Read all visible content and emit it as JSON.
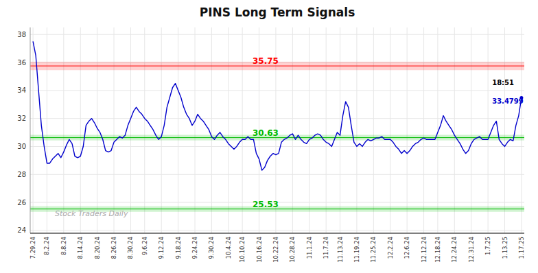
{
  "chart_data": {
    "type": "line",
    "title": "PINS Long Term Signals",
    "color": "#0000cc",
    "marker": "last",
    "grid": true,
    "ylim": [
      23.8,
      38.5
    ],
    "yticks": [
      24,
      26,
      28,
      30,
      32,
      34,
      36,
      38
    ],
    "categories": [
      "7.29.24",
      null,
      null,
      null,
      null,
      "8.2.24",
      null,
      null,
      null,
      null,
      null,
      "8.8.24",
      null,
      null,
      null,
      null,
      null,
      "8.14.24",
      null,
      null,
      null,
      null,
      null,
      "8.20.24",
      null,
      null,
      null,
      null,
      null,
      "8.26.24",
      null,
      null,
      null,
      null,
      null,
      "8.30.24",
      null,
      null,
      null,
      null,
      "9.6.24",
      null,
      null,
      null,
      null,
      null,
      "9.12.24",
      null,
      null,
      null,
      null,
      null,
      "9.18.24",
      null,
      null,
      null,
      null,
      null,
      "9.24.24",
      null,
      null,
      null,
      null,
      null,
      "9.30.24",
      null,
      null,
      null,
      null,
      null,
      "10.4.24",
      null,
      null,
      null,
      null,
      "10.10.24",
      null,
      null,
      null,
      null,
      null,
      "10.16.24",
      null,
      null,
      null,
      null,
      null,
      "10.22.24",
      null,
      null,
      null,
      null,
      null,
      "10.28.24",
      null,
      null,
      null,
      null,
      null,
      "11.1.24",
      null,
      null,
      null,
      null,
      null,
      "11.7.24",
      null,
      null,
      null,
      null,
      "11.13.24",
      null,
      null,
      null,
      null,
      null,
      "11.19.24",
      null,
      null,
      null,
      null,
      null,
      "11.25.24",
      null,
      null,
      null,
      null,
      null,
      "12.2.24",
      null,
      null,
      null,
      null,
      null,
      "12.6.24",
      null,
      null,
      null,
      null,
      null,
      "12.12.24",
      null,
      null,
      null,
      null,
      "12.18.24",
      null,
      null,
      null,
      null,
      null,
      "12.24.24",
      null,
      null,
      null,
      null,
      null,
      "12.31.24",
      null,
      null,
      null,
      null,
      null,
      "1.7.25",
      null,
      null,
      null,
      null,
      null,
      "1.13.25",
      null,
      null,
      null,
      null,
      null,
      "1.17.25"
    ],
    "values": [
      37.5,
      36.5,
      34.0,
      31.5,
      30.0,
      28.8,
      28.8,
      29.1,
      29.3,
      29.5,
      29.2,
      29.6,
      30.1,
      30.5,
      30.2,
      29.3,
      29.2,
      29.3,
      30.0,
      31.5,
      31.8,
      32.0,
      31.7,
      31.3,
      31.0,
      30.5,
      29.7,
      29.6,
      29.7,
      30.3,
      30.5,
      30.7,
      30.6,
      30.8,
      31.5,
      32.0,
      32.5,
      32.8,
      32.5,
      32.3,
      32.0,
      31.8,
      31.5,
      31.2,
      30.8,
      30.5,
      30.7,
      31.5,
      32.8,
      33.5,
      34.2,
      34.5,
      34.0,
      33.5,
      32.8,
      32.3,
      32.0,
      31.5,
      31.8,
      32.3,
      32.0,
      31.8,
      31.5,
      31.2,
      30.7,
      30.5,
      30.8,
      31.0,
      30.7,
      30.5,
      30.2,
      30.0,
      29.8,
      30.0,
      30.3,
      30.5,
      30.5,
      30.7,
      30.5,
      30.5,
      29.5,
      29.1,
      28.3,
      28.5,
      29.0,
      29.3,
      29.5,
      29.4,
      29.5,
      30.3,
      30.5,
      30.6,
      30.8,
      30.9,
      30.5,
      30.8,
      30.5,
      30.3,
      30.2,
      30.5,
      30.6,
      30.8,
      30.9,
      30.8,
      30.5,
      30.3,
      30.2,
      30.0,
      30.5,
      31.0,
      30.8,
      32.2,
      33.2,
      32.8,
      31.5,
      30.3,
      30.0,
      30.2,
      30.0,
      30.3,
      30.5,
      30.4,
      30.5,
      30.6,
      30.6,
      30.7,
      30.5,
      30.5,
      30.5,
      30.3,
      30.0,
      29.8,
      29.5,
      29.7,
      29.5,
      29.7,
      30.0,
      30.2,
      30.3,
      30.5,
      30.6,
      30.5,
      30.5,
      30.5,
      30.5,
      31.0,
      31.5,
      32.2,
      31.8,
      31.5,
      31.2,
      30.8,
      30.5,
      30.2,
      29.8,
      29.5,
      29.7,
      30.2,
      30.5,
      30.6,
      30.7,
      30.5,
      30.5,
      30.5,
      31.0,
      31.5,
      31.8,
      30.5,
      30.2,
      30.0,
      30.3,
      30.5,
      30.4,
      31.5,
      32.2,
      33.4799
    ],
    "reference_lines": [
      {
        "value": 35.75,
        "label": "35.75",
        "band": 0.3,
        "color": "#ff0000"
      },
      {
        "value": 30.63,
        "label": "30.63",
        "band": 0.2,
        "color": "#00bb00"
      },
      {
        "value": 25.53,
        "label": "25.53",
        "band": 0.2,
        "color": "#00bb00"
      }
    ],
    "annotations": [
      {
        "text": "18:51",
        "color": "#000000"
      },
      {
        "text": "33.4799",
        "color": "#0000cc"
      },
      {
        "text": "Stock Traders Daily",
        "color": "#aaaaaa"
      }
    ]
  }
}
